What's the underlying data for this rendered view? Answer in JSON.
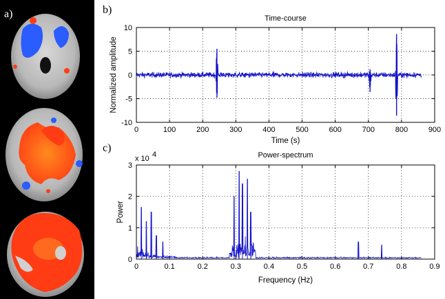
{
  "panel_labels": {
    "a": "a)",
    "b": "b)",
    "c": "c)"
  },
  "colors": {
    "signal": "#1414c8",
    "activation_pos": "#ff4a14",
    "activation_neg": "#2a5cff",
    "background": "#000000"
  },
  "chart_data": [
    {
      "type": "line",
      "title": "Time-course",
      "xlabel": "Time (s)",
      "ylabel": "Normalized amplitude",
      "xlim": [
        0,
        900
      ],
      "ylim": [
        -10,
        10
      ],
      "xticks": [
        "0",
        "100",
        "200",
        "300",
        "400",
        "500",
        "600",
        "700",
        "800",
        "900"
      ],
      "yticks": [
        "10",
        "5",
        "0",
        "-5",
        "-10"
      ],
      "grid": true,
      "series": [
        {
          "name": "time-course",
          "x_range": [
            0,
            860
          ],
          "baseline": 0,
          "noise_amplitude": 0.6,
          "events": [
            {
              "x": 243,
              "min": -4.8,
              "max": 5.5
            },
            {
              "x": 705,
              "min": -3.6,
              "max": 1.2
            },
            {
              "x": 785,
              "min": -8.6,
              "max": 8.6
            }
          ]
        }
      ]
    },
    {
      "type": "line",
      "title": "Power-spectrum",
      "xlabel": "Frequency (Hz)",
      "ylabel": "Power",
      "y_multiplier": "x 10",
      "y_exponent": "4",
      "xlim": [
        0,
        0.9
      ],
      "ylim": [
        0,
        3
      ],
      "xticks": [
        "0",
        "0.1",
        "0.2",
        "0.3",
        "0.4",
        "0.5",
        "0.6",
        "0.7",
        "0.8",
        "0.9"
      ],
      "yticks": [
        "3",
        "2",
        "1",
        "0"
      ],
      "grid": true,
      "series": [
        {
          "name": "power",
          "x_range": [
            0,
            0.86
          ],
          "peaks": [
            {
              "f": 0.015,
              "p": 1.65
            },
            {
              "f": 0.03,
              "p": 1.2
            },
            {
              "f": 0.045,
              "p": 1.5
            },
            {
              "f": 0.06,
              "p": 0.75
            },
            {
              "f": 0.08,
              "p": 0.55
            },
            {
              "f": 0.295,
              "p": 2.0
            },
            {
              "f": 0.31,
              "p": 2.8
            },
            {
              "f": 0.32,
              "p": 2.4
            },
            {
              "f": 0.335,
              "p": 2.55
            },
            {
              "f": 0.345,
              "p": 1.5
            },
            {
              "f": 0.67,
              "p": 0.55
            },
            {
              "f": 0.74,
              "p": 0.45
            }
          ]
        }
      ]
    }
  ]
}
